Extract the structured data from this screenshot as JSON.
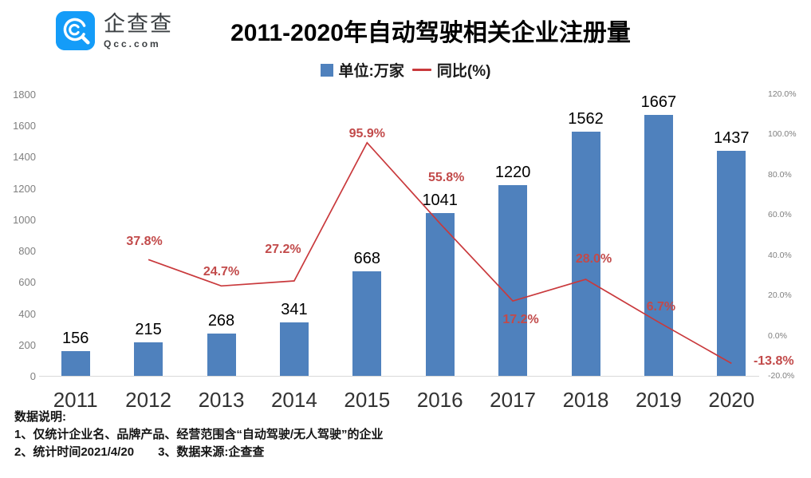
{
  "logo": {
    "brand": "企查查",
    "domain": "Qcc.com",
    "brand_color": "#149cf8"
  },
  "header": {
    "title": "2011-2020年自动驾驶相关企业注册量"
  },
  "legend": {
    "items": [
      {
        "label": "单位:万家",
        "marker": "square",
        "color": "#4f81bd"
      },
      {
        "label": "同比(%)",
        "marker": "line",
        "color": "#c9393c"
      }
    ],
    "position": "top"
  },
  "chart_data": {
    "type": "bar",
    "title": "2011-2020年自动驾驶相关企业注册量",
    "categories": [
      "2011",
      "2012",
      "2013",
      "2014",
      "2015",
      "2016",
      "2017",
      "2018",
      "2019",
      "2020"
    ],
    "series": [
      {
        "name": "单位:万家",
        "type": "bar",
        "axis": "left",
        "color": "#4f81bd",
        "values": [
          156,
          215,
          268,
          341,
          668,
          1041,
          1220,
          1562,
          1667,
          1437
        ]
      },
      {
        "name": "同比(%)",
        "type": "line",
        "axis": "right",
        "color": "#c9393c",
        "values": [
          null,
          37.8,
          24.7,
          27.2,
          95.9,
          55.8,
          17.2,
          28.0,
          6.7,
          -13.8
        ]
      }
    ],
    "left_axis": {
      "min": 0,
      "max": 1800,
      "step": 200
    },
    "right_axis": {
      "min": -20,
      "max": 120,
      "step": 20,
      "format": "percent-1-decimal"
    },
    "grid": false,
    "legend_position": "top",
    "bar_value_color": "#000000",
    "line_value_color": "#c24a4a",
    "line_label_offsets": [
      null,
      [
        -5,
        -22
      ],
      [
        0,
        -17
      ],
      [
        -14,
        -39
      ],
      [
        0,
        -11
      ],
      [
        8,
        -57
      ],
      [
        10,
        24
      ],
      [
        10,
        -25
      ],
      [
        3,
        -19
      ],
      [
        53,
        -2
      ]
    ]
  },
  "footer": {
    "lines": [
      "数据说明:",
      "1、仅统计企业名、品牌产品、经营范围含“自动驾驶/无人驾驶”的企业",
      "2、统计时间2021/4/20　　3、数据来源:企查查"
    ]
  }
}
